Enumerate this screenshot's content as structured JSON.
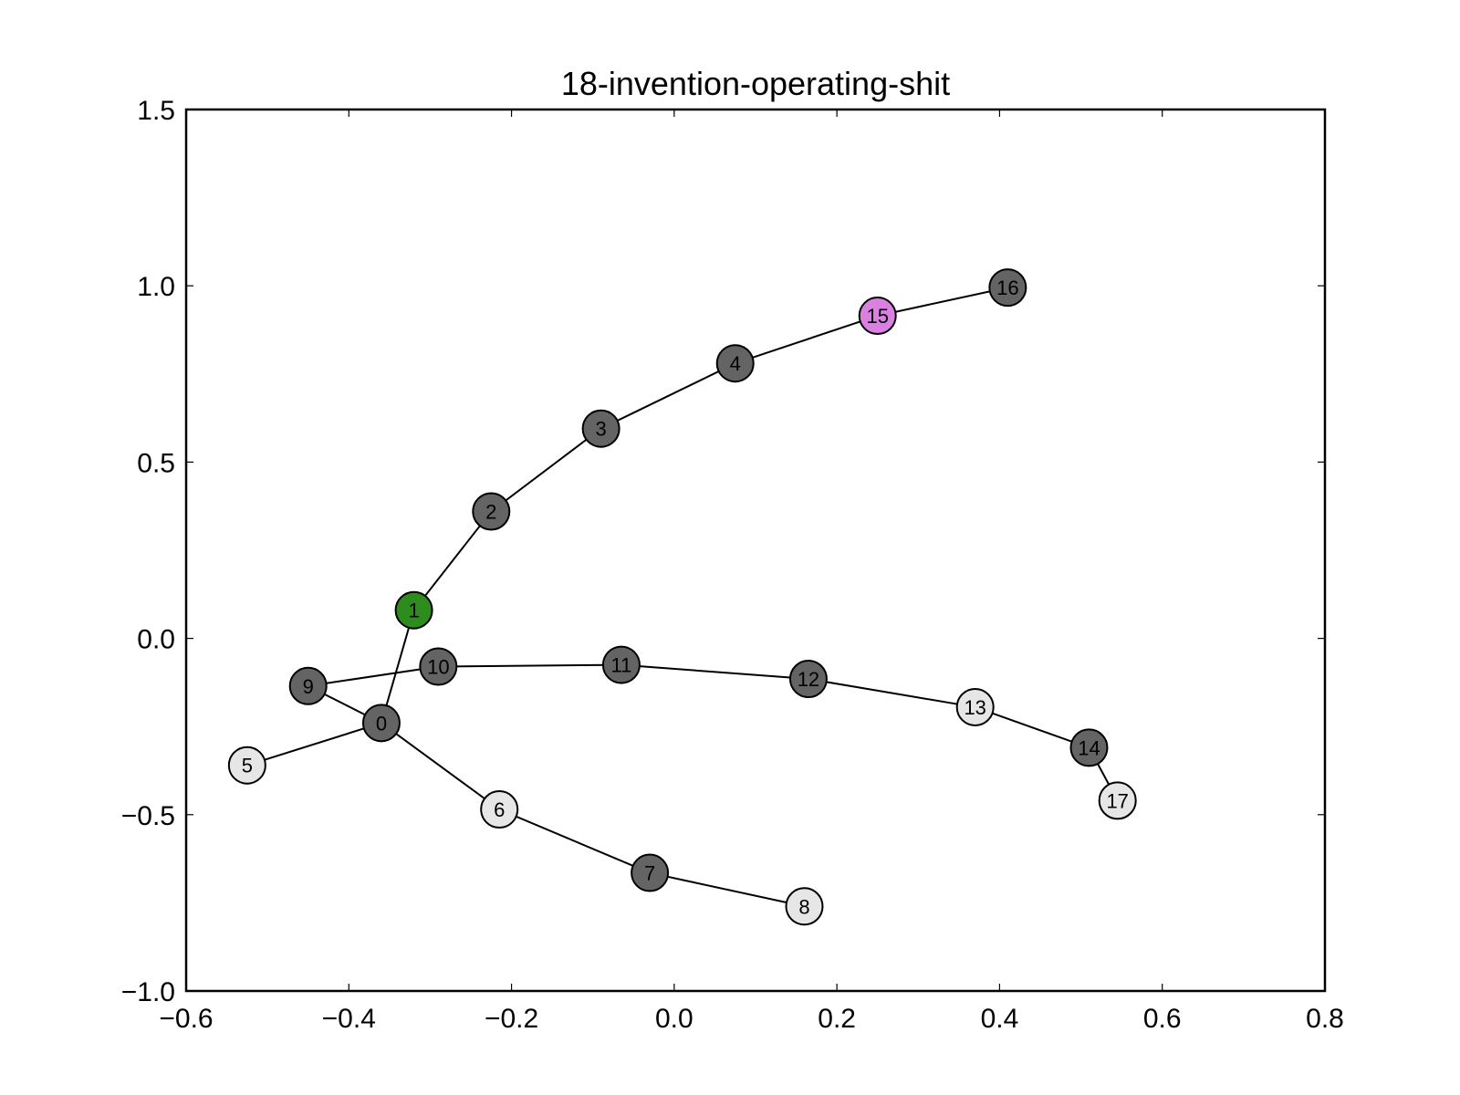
{
  "chart_data": {
    "type": "scatter",
    "subtype": "network-graph",
    "title": "18-invention-operating-shit",
    "xlabel": "",
    "ylabel": "",
    "xlim": [
      -0.6,
      0.8
    ],
    "ylim": [
      -1.0,
      1.5
    ],
    "x_ticks": [
      -0.6,
      -0.4,
      -0.2,
      0.0,
      0.2,
      0.4,
      0.6,
      0.8
    ],
    "y_ticks": [
      -1.0,
      -0.5,
      0.0,
      0.5,
      1.0,
      1.5
    ],
    "x_tick_labels": [
      "−0.6",
      "−0.4",
      "−0.2",
      "0.0",
      "0.2",
      "0.4",
      "0.6",
      "0.8"
    ],
    "y_tick_labels": [
      "−1.0",
      "−0.5",
      "0.0",
      "0.5",
      "1.0",
      "1.5"
    ],
    "grid": false,
    "colors": {
      "dark": "#646464",
      "light": "#e6e6e6",
      "green": "#2e8b1e",
      "magenta": "#d980e0"
    },
    "nodes": [
      {
        "id": "0",
        "x": -0.36,
        "y": -0.24,
        "color": "dark"
      },
      {
        "id": "1",
        "x": -0.32,
        "y": 0.08,
        "color": "green"
      },
      {
        "id": "2",
        "x": -0.225,
        "y": 0.36,
        "color": "dark"
      },
      {
        "id": "3",
        "x": -0.09,
        "y": 0.595,
        "color": "dark"
      },
      {
        "id": "4",
        "x": 0.075,
        "y": 0.78,
        "color": "dark"
      },
      {
        "id": "5",
        "x": -0.525,
        "y": -0.36,
        "color": "light"
      },
      {
        "id": "6",
        "x": -0.215,
        "y": -0.485,
        "color": "light"
      },
      {
        "id": "7",
        "x": -0.03,
        "y": -0.665,
        "color": "dark"
      },
      {
        "id": "8",
        "x": 0.16,
        "y": -0.76,
        "color": "light"
      },
      {
        "id": "9",
        "x": -0.45,
        "y": -0.135,
        "color": "dark"
      },
      {
        "id": "10",
        "x": -0.29,
        "y": -0.08,
        "color": "dark"
      },
      {
        "id": "11",
        "x": -0.065,
        "y": -0.075,
        "color": "dark"
      },
      {
        "id": "12",
        "x": 0.165,
        "y": -0.115,
        "color": "dark"
      },
      {
        "id": "13",
        "x": 0.37,
        "y": -0.195,
        "color": "light"
      },
      {
        "id": "14",
        "x": 0.51,
        "y": -0.31,
        "color": "dark"
      },
      {
        "id": "15",
        "x": 0.25,
        "y": 0.915,
        "color": "magenta"
      },
      {
        "id": "16",
        "x": 0.41,
        "y": 0.995,
        "color": "dark"
      },
      {
        "id": "17",
        "x": 0.545,
        "y": -0.46,
        "color": "light"
      }
    ],
    "edges": [
      [
        "0",
        "1"
      ],
      [
        "1",
        "2"
      ],
      [
        "2",
        "3"
      ],
      [
        "3",
        "4"
      ],
      [
        "4",
        "15"
      ],
      [
        "15",
        "16"
      ],
      [
        "0",
        "5"
      ],
      [
        "0",
        "6"
      ],
      [
        "6",
        "7"
      ],
      [
        "7",
        "8"
      ],
      [
        "0",
        "9"
      ],
      [
        "9",
        "10"
      ],
      [
        "10",
        "11"
      ],
      [
        "11",
        "12"
      ],
      [
        "12",
        "13"
      ],
      [
        "13",
        "14"
      ],
      [
        "14",
        "17"
      ]
    ]
  }
}
